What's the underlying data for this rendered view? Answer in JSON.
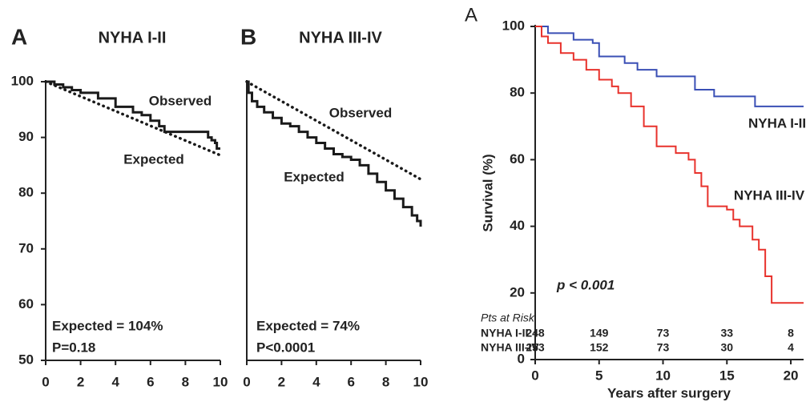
{
  "chart_data": [
    {
      "type": "line",
      "panel": "A",
      "title": "NYHA I-II",
      "xlim": [
        0,
        10
      ],
      "ylim": [
        50,
        100
      ],
      "xticks": [
        0,
        2,
        4,
        6,
        8,
        10
      ],
      "yticks": [
        50,
        60,
        70,
        80,
        90,
        100
      ],
      "series": [
        {
          "name": "Observed",
          "color": "#1a1a1a",
          "step": true,
          "x": [
            0,
            0.5,
            1,
            1.5,
            2,
            3,
            4,
            5,
            5.5,
            6,
            6.5,
            6.8,
            7,
            8,
            9,
            9.3,
            9.5,
            9.7,
            9.8,
            10
          ],
          "values": [
            100,
            99.5,
            99,
            98.5,
            98,
            97,
            95.5,
            94.5,
            94,
            93,
            92,
            91,
            91,
            91,
            91,
            90,
            89.5,
            89,
            88,
            88
          ]
        },
        {
          "name": "Expected",
          "color": "#1a1a1a",
          "dotted": true,
          "x": [
            0,
            10
          ],
          "values": [
            100,
            86.8
          ]
        }
      ],
      "annotations": [
        "Expected = 104%",
        "P=0.18"
      ]
    },
    {
      "type": "line",
      "panel": "B",
      "title": "NYHA III-IV",
      "xlim": [
        0,
        10
      ],
      "ylim": [
        50,
        100
      ],
      "xticks": [
        0,
        2,
        4,
        6,
        8,
        10
      ],
      "series": [
        {
          "name": "Observed",
          "color": "#1a1a1a",
          "step": true,
          "x": [
            0,
            0.1,
            0.3,
            0.6,
            1,
            1.5,
            2,
            2.5,
            3,
            3.5,
            4,
            4.5,
            5,
            5.5,
            6,
            6.5,
            7,
            7.5,
            8,
            8.5,
            9,
            9.5,
            9.8,
            10
          ],
          "values": [
            100,
            98,
            96.5,
            95.5,
            94.5,
            93.5,
            92.5,
            92,
            91,
            90,
            89,
            88,
            87,
            86.5,
            86,
            85,
            83.5,
            82,
            80.5,
            79,
            77.5,
            76,
            75,
            74
          ]
        },
        {
          "name": "Expected",
          "color": "#1a1a1a",
          "dotted": true,
          "x": [
            0,
            10
          ],
          "values": [
            100,
            82.5
          ]
        }
      ],
      "annotations": [
        "Expected = 74%",
        "P<0.0001"
      ]
    },
    {
      "type": "line",
      "panel": "A",
      "y_label": "Survival (%)",
      "x_label": "Years after surgery",
      "xlim": [
        0,
        21
      ],
      "ylim": [
        0,
        100
      ],
      "xticks": [
        0,
        5,
        10,
        15,
        20
      ],
      "yticks": [
        0,
        20,
        40,
        60,
        80,
        100
      ],
      "series": [
        {
          "name": "NYHA I-II",
          "color": "#3a4fb5",
          "step": true,
          "x": [
            0,
            1,
            3,
            4.5,
            5,
            7,
            8,
            9.5,
            12,
            12.5,
            14,
            17,
            17.2,
            21
          ],
          "values": [
            100,
            98,
            96,
            95,
            91,
            89,
            87,
            85,
            85,
            81,
            79,
            79,
            76,
            76
          ]
        },
        {
          "name": "NYHA III-IV",
          "color": "#e8322c",
          "step": true,
          "x": [
            0,
            0.5,
            1,
            2,
            3,
            4,
            5,
            6,
            6.5,
            7.5,
            8.5,
            9.5,
            11,
            12,
            12.5,
            13,
            13.5,
            15,
            15.5,
            16,
            17,
            17.5,
            18,
            18.5,
            21
          ],
          "values": [
            100,
            97,
            95,
            92,
            90,
            87,
            84,
            82,
            80,
            76,
            70,
            64,
            62,
            60,
            56,
            52,
            46,
            45,
            42,
            40,
            36,
            33,
            25,
            17,
            17
          ]
        }
      ],
      "annotations": [
        "p < 0.001"
      ],
      "risk_table": {
        "title": "Pts at Risk",
        "rows": [
          {
            "label": "NYHA I-II",
            "values": [
              248,
              149,
              73,
              33,
              8
            ]
          },
          {
            "label": "NYHA III-IV",
            "values": [
              253,
              152,
              73,
              30,
              4
            ]
          }
        ]
      }
    }
  ]
}
